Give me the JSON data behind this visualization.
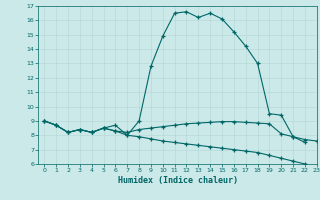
{
  "xlabel": "Humidex (Indice chaleur)",
  "xlim": [
    -0.5,
    23
  ],
  "ylim": [
    6,
    17
  ],
  "yticks": [
    6,
    7,
    8,
    9,
    10,
    11,
    12,
    13,
    14,
    15,
    16,
    17
  ],
  "xticks": [
    0,
    1,
    2,
    3,
    4,
    5,
    6,
    7,
    8,
    9,
    10,
    11,
    12,
    13,
    14,
    15,
    16,
    17,
    18,
    19,
    20,
    21,
    22,
    23
  ],
  "bg_color": "#cce9e9",
  "line_color": "#006666",
  "grid_color": "#b8d8d8",
  "line1_x": [
    0,
    1,
    2,
    3,
    4,
    5,
    6,
    7,
    8,
    9,
    10,
    11,
    12,
    13,
    14,
    15,
    16,
    17,
    18,
    19,
    20,
    21,
    22
  ],
  "line1_y": [
    9.0,
    8.7,
    8.2,
    8.4,
    8.2,
    8.5,
    8.7,
    8.0,
    9.0,
    12.8,
    14.9,
    16.5,
    16.6,
    16.2,
    16.5,
    16.1,
    15.2,
    14.2,
    13.0,
    9.5,
    9.4,
    7.9,
    7.5
  ],
  "line2_x": [
    0,
    1,
    2,
    3,
    4,
    5,
    6,
    7,
    8,
    9,
    10,
    11,
    12,
    13,
    14,
    15,
    16,
    17,
    18,
    19,
    20,
    21,
    22,
    23
  ],
  "line2_y": [
    9.0,
    8.7,
    8.2,
    8.4,
    8.2,
    8.5,
    8.3,
    8.2,
    8.4,
    8.5,
    8.6,
    8.7,
    8.8,
    8.85,
    8.9,
    8.95,
    8.95,
    8.9,
    8.85,
    8.8,
    8.1,
    7.9,
    7.7,
    7.6
  ],
  "line3_x": [
    0,
    1,
    2,
    3,
    4,
    5,
    6,
    7,
    8,
    9,
    10,
    11,
    12,
    13,
    14,
    15,
    16,
    17,
    18,
    19,
    20,
    21,
    22,
    23
  ],
  "line3_y": [
    9.0,
    8.7,
    8.2,
    8.4,
    8.2,
    8.5,
    8.3,
    8.0,
    7.9,
    7.75,
    7.6,
    7.5,
    7.4,
    7.3,
    7.2,
    7.1,
    7.0,
    6.9,
    6.8,
    6.6,
    6.4,
    6.2,
    6.0,
    5.85
  ]
}
